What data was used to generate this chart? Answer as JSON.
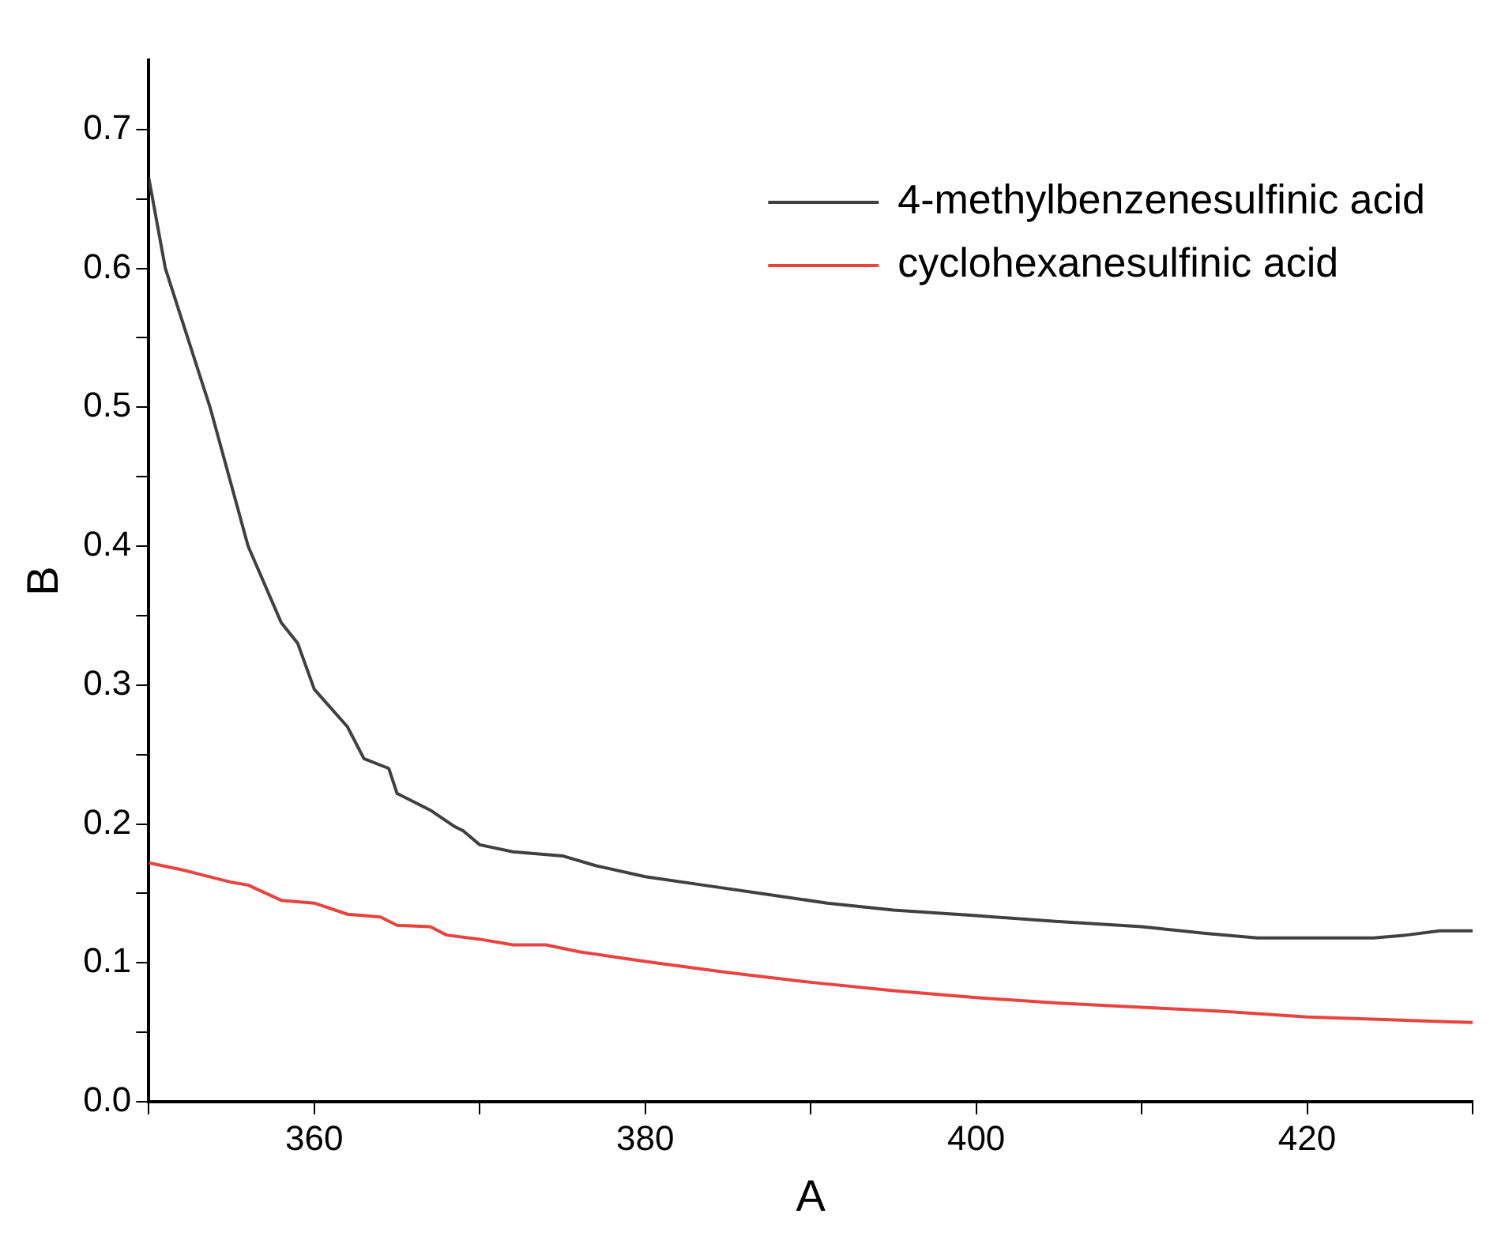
{
  "chart_data": {
    "type": "line",
    "xlabel": "A",
    "ylabel": "B",
    "xlim": [
      350,
      430
    ],
    "ylim": [
      0,
      0.75
    ],
    "xticks": [
      {
        "value": 350,
        "label": null
      },
      360,
      {
        "value": 370,
        "label": null
      },
      380,
      {
        "value": 390,
        "label": null
      },
      400,
      {
        "value": 410,
        "label": null
      },
      420,
      {
        "value": 430,
        "label": null
      }
    ],
    "yticks": [
      {
        "value": 0,
        "label": "0.0"
      },
      {
        "value": 0.05,
        "label": null
      },
      {
        "value": 0.1,
        "label": "0.1"
      },
      {
        "value": 0.15,
        "label": null
      },
      {
        "value": 0.2,
        "label": "0.2"
      },
      {
        "value": 0.25,
        "label": null
      },
      {
        "value": 0.3,
        "label": "0.3"
      },
      {
        "value": 0.35,
        "label": null
      },
      {
        "value": 0.4,
        "label": "0.4"
      },
      {
        "value": 0.45,
        "label": null
      },
      {
        "value": 0.5,
        "label": "0.5"
      },
      {
        "value": 0.55,
        "label": null
      },
      {
        "value": 0.6,
        "label": "0.6"
      },
      {
        "value": 0.65,
        "label": null
      },
      {
        "value": 0.7,
        "label": "0.7"
      }
    ],
    "grid": false,
    "legend": "top right",
    "marker": "none",
    "line_style": "solid",
    "series": [
      {
        "name": "4-methylbenzenesulfinic acid",
        "color": "#404040",
        "x": [
          350,
          351,
          353.7,
          356,
          358,
          359,
          360,
          362,
          363,
          364.5,
          365,
          367,
          368.5,
          369,
          370,
          372,
          375,
          377,
          380,
          383.5,
          387,
          391,
          395,
          400,
          404.6,
          410,
          414,
          417,
          420,
          424,
          426,
          428,
          430
        ],
        "values": [
          0.665,
          0.6,
          0.5,
          0.4,
          0.345,
          0.33,
          0.297,
          0.27,
          0.247,
          0.24,
          0.222,
          0.21,
          0.198,
          0.195,
          0.185,
          0.18,
          0.177,
          0.17,
          0.162,
          0.156,
          0.15,
          0.143,
          0.138,
          0.134,
          0.13,
          0.126,
          0.121,
          0.118,
          0.118,
          0.118,
          0.12,
          0.123,
          0.123
        ]
      },
      {
        "name": "cyclohexanesulfinic acid",
        "color": "#e8433f",
        "x": [
          350,
          352,
          355,
          356,
          358,
          360,
          362,
          364,
          365,
          367,
          368,
          370,
          372,
          374,
          376,
          380,
          385,
          390,
          395,
          400,
          405,
          410,
          415,
          420,
          425,
          430
        ],
        "values": [
          0.172,
          0.167,
          0.158,
          0.156,
          0.145,
          0.143,
          0.135,
          0.133,
          0.127,
          0.126,
          0.12,
          0.117,
          0.113,
          0.113,
          0.108,
          0.101,
          0.093,
          0.086,
          0.08,
          0.075,
          0.071,
          0.068,
          0.065,
          0.061,
          0.059,
          0.057
        ]
      }
    ]
  }
}
